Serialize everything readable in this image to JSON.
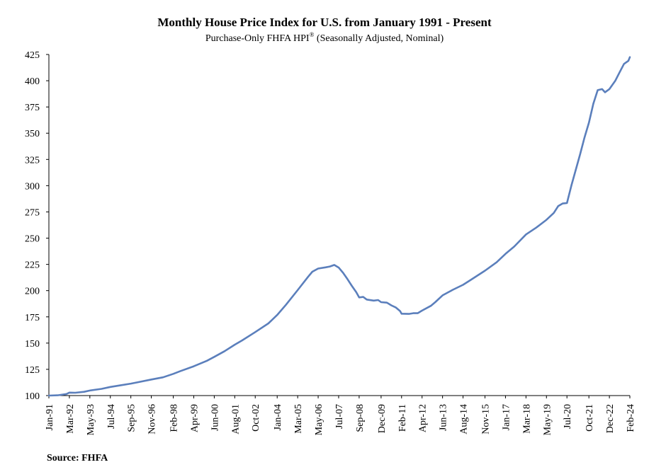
{
  "chart_data": {
    "type": "line",
    "title": "Monthly House Price Index for U.S. from January 1991 - Present",
    "subtitle_main": "Purchase-Only FHFA HPI",
    "subtitle_sup": "®",
    "subtitle_rest": " (Seasonally Adjusted, Nominal)",
    "source": "Source: FHFA",
    "xlabel": "",
    "ylabel": "",
    "ylim": [
      100,
      425
    ],
    "yticks": [
      100,
      125,
      150,
      175,
      200,
      225,
      250,
      275,
      300,
      325,
      350,
      375,
      400,
      425
    ],
    "x_range": [
      1991.0,
      2024.083
    ],
    "x_ticks": [
      {
        "label": "Jan-91",
        "t": 1991.0
      },
      {
        "label": "Mar-92",
        "t": 1992.167
      },
      {
        "label": "May-93",
        "t": 1993.333
      },
      {
        "label": "Jul-94",
        "t": 1994.5
      },
      {
        "label": "Sep-95",
        "t": 1995.667
      },
      {
        "label": "Nov-96",
        "t": 1996.833
      },
      {
        "label": "Feb-98",
        "t": 1998.083
      },
      {
        "label": "Apr-99",
        "t": 1999.25
      },
      {
        "label": "Jun-00",
        "t": 2000.417
      },
      {
        "label": "Aug-01",
        "t": 2001.583
      },
      {
        "label": "Oct-02",
        "t": 2002.75
      },
      {
        "label": "Jan-04",
        "t": 2004.0
      },
      {
        "label": "Mar-05",
        "t": 2005.167
      },
      {
        "label": "May-06",
        "t": 2006.333
      },
      {
        "label": "Jul-07",
        "t": 2007.5
      },
      {
        "label": "Sep-08",
        "t": 2008.667
      },
      {
        "label": "Dec-09",
        "t": 2009.917
      },
      {
        "label": "Feb-11",
        "t": 2011.083
      },
      {
        "label": "Apr-12",
        "t": 2012.25
      },
      {
        "label": "Jun-13",
        "t": 2013.417
      },
      {
        "label": "Aug-14",
        "t": 2014.583
      },
      {
        "label": "Nov-15",
        "t": 2015.833
      },
      {
        "label": "Jan-17",
        "t": 2017.0
      },
      {
        "label": "Mar-18",
        "t": 2018.167
      },
      {
        "label": "May-19",
        "t": 2019.333
      },
      {
        "label": "Jul-20",
        "t": 2020.5
      },
      {
        "label": "Oct-21",
        "t": 2021.75
      },
      {
        "label": "Dec-22",
        "t": 2022.917
      },
      {
        "label": "Feb-24",
        "t": 2024.083
      }
    ],
    "series": [
      {
        "name": "Purchase-Only FHFA HPI",
        "color": "#5b7fbc",
        "points": [
          [
            1991.0,
            100.0
          ],
          [
            1991.5,
            100.3
          ],
          [
            1992.0,
            101.5
          ],
          [
            1992.167,
            102.8
          ],
          [
            1992.5,
            102.7
          ],
          [
            1993.0,
            103.6
          ],
          [
            1993.333,
            104.8
          ],
          [
            1994.0,
            106.4
          ],
          [
            1994.5,
            108.2
          ],
          [
            1995.0,
            109.6
          ],
          [
            1995.667,
            111.4
          ],
          [
            1996.0,
            112.5
          ],
          [
            1996.833,
            115.3
          ],
          [
            1997.5,
            117.4
          ],
          [
            1998.083,
            120.7
          ],
          [
            1998.5,
            123.4
          ],
          [
            1999.25,
            127.9
          ],
          [
            2000.0,
            133.2
          ],
          [
            2000.417,
            136.9
          ],
          [
            2001.0,
            142.3
          ],
          [
            2001.583,
            148.5
          ],
          [
            2002.0,
            152.5
          ],
          [
            2002.75,
            160.5
          ],
          [
            2003.5,
            168.8
          ],
          [
            2004.0,
            176.8
          ],
          [
            2004.5,
            186.5
          ],
          [
            2005.167,
            200.5
          ],
          [
            2005.75,
            213.0
          ],
          [
            2006.0,
            218.0
          ],
          [
            2006.333,
            221.0
          ],
          [
            2006.75,
            222.2
          ],
          [
            2007.0,
            223.0
          ],
          [
            2007.25,
            224.5
          ],
          [
            2007.5,
            222.0
          ],
          [
            2007.75,
            217.0
          ],
          [
            2008.0,
            211.0
          ],
          [
            2008.25,
            204.5
          ],
          [
            2008.5,
            198.5
          ],
          [
            2008.667,
            193.5
          ],
          [
            2008.9,
            194.0
          ],
          [
            2009.1,
            191.5
          ],
          [
            2009.5,
            190.5
          ],
          [
            2009.75,
            191.0
          ],
          [
            2009.917,
            189.0
          ],
          [
            2010.25,
            188.5
          ],
          [
            2010.5,
            186.0
          ],
          [
            2010.75,
            184.0
          ],
          [
            2011.0,
            180.5
          ],
          [
            2011.083,
            178.0
          ],
          [
            2011.5,
            177.8
          ],
          [
            2011.75,
            178.5
          ],
          [
            2012.0,
            178.5
          ],
          [
            2012.25,
            181.0
          ],
          [
            2012.75,
            185.5
          ],
          [
            2013.0,
            189.0
          ],
          [
            2013.417,
            195.5
          ],
          [
            2013.75,
            198.5
          ],
          [
            2014.0,
            200.8
          ],
          [
            2014.583,
            205.5
          ],
          [
            2015.0,
            210.0
          ],
          [
            2015.833,
            219.0
          ],
          [
            2016.5,
            227.0
          ],
          [
            2017.0,
            235.0
          ],
          [
            2017.5,
            242.0
          ],
          [
            2018.167,
            253.5
          ],
          [
            2018.75,
            260.0
          ],
          [
            2019.333,
            267.5
          ],
          [
            2019.75,
            274.0
          ],
          [
            2020.0,
            280.5
          ],
          [
            2020.25,
            283.0
          ],
          [
            2020.5,
            283.5
          ],
          [
            2020.75,
            300.0
          ],
          [
            2021.0,
            315.0
          ],
          [
            2021.25,
            330.0
          ],
          [
            2021.5,
            346.0
          ],
          [
            2021.75,
            360.0
          ],
          [
            2022.0,
            378.0
          ],
          [
            2022.25,
            391.0
          ],
          [
            2022.5,
            392.0
          ],
          [
            2022.667,
            389.0
          ],
          [
            2022.917,
            392.0
          ],
          [
            2023.25,
            400.0
          ],
          [
            2023.5,
            408.0
          ],
          [
            2023.75,
            416.0
          ],
          [
            2024.0,
            419.0
          ],
          [
            2024.083,
            422.5
          ]
        ]
      }
    ]
  }
}
